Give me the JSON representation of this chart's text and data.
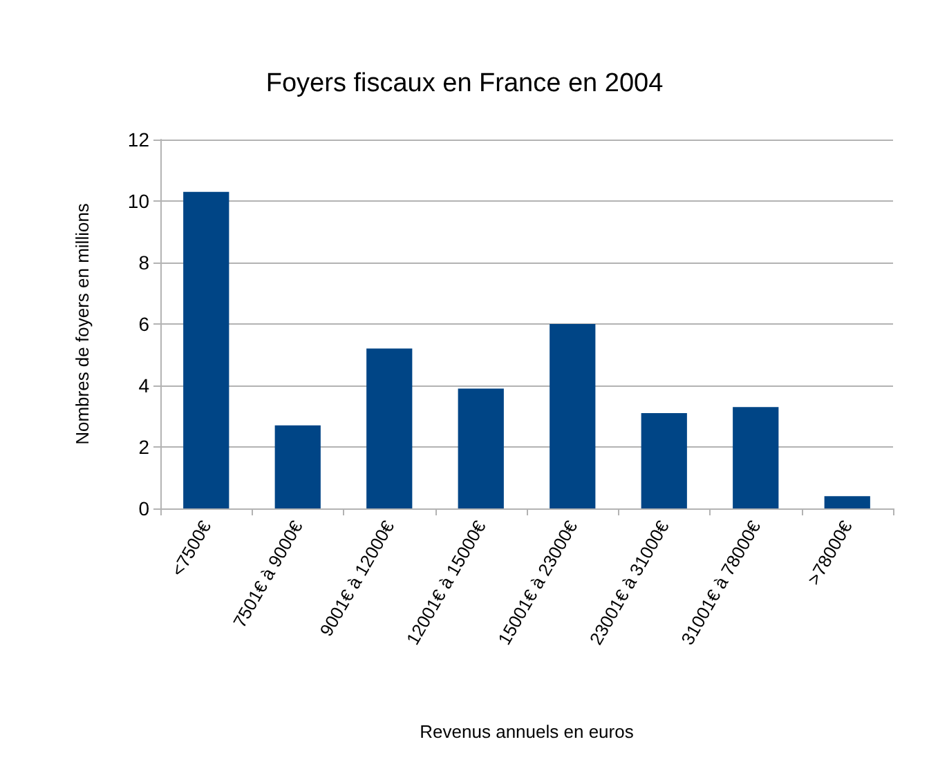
{
  "chart_data": {
    "type": "bar",
    "title": "Foyers fiscaux en France en 2004",
    "xlabel": "Revenus annuels en euros",
    "ylabel": "Nombres de foyers en millions",
    "categories": [
      "<7500€",
      "7501€ à 9000€",
      "9001€ à 12000€",
      "12001€ à 15000€",
      "15001€ à 23000€",
      "23001€ à 31000€",
      "31001€ à 78000€",
      ">78000€"
    ],
    "values": [
      10.3,
      2.7,
      5.2,
      3.9,
      6.0,
      3.1,
      3.3,
      0.4
    ],
    "color": "#004586",
    "ylim": [
      0,
      12
    ],
    "yticks": [
      0,
      2,
      4,
      6,
      8,
      10,
      12
    ],
    "grid": "y"
  }
}
